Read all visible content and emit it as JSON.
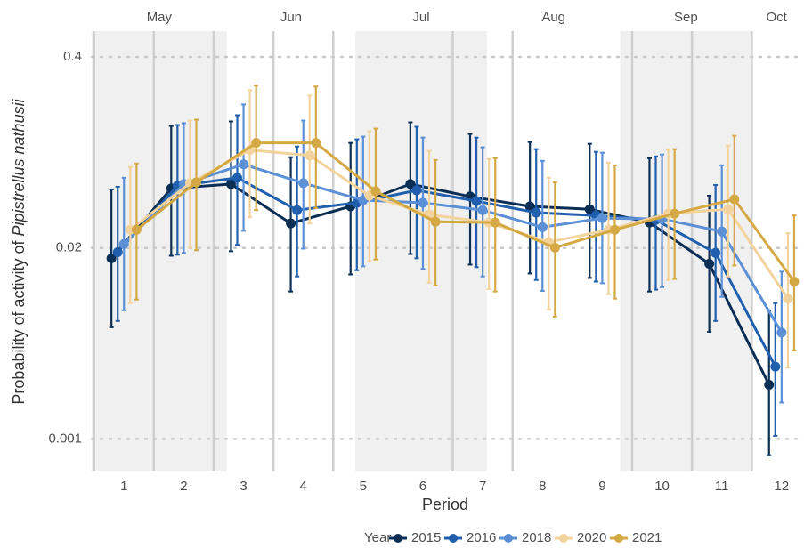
{
  "chart_data": {
    "type": "line",
    "x_label": "Period",
    "y_label": "Probability of activity of",
    "y_label_species": "Pipistrellus nathusii",
    "x": [
      1,
      2,
      3,
      4,
      5,
      6,
      7,
      8,
      9,
      10,
      11,
      12
    ],
    "xlim": [
      0.46,
      12.33
    ],
    "xticks": [
      1,
      2,
      3,
      4,
      5,
      6,
      7,
      8,
      9,
      10,
      11,
      12
    ],
    "ylim": [
      0.0006,
      0.6
    ],
    "yticks": [
      0.001,
      0.02,
      0.4
    ],
    "log_y": true,
    "grid": true,
    "legend": "bottom",
    "legend_title": "Year",
    "months": [
      {
        "label": "May",
        "start": 0.46,
        "end": 2.72,
        "shaded": true
      },
      {
        "label": "Jun",
        "start": 2.72,
        "end": 4.87,
        "shaded": false
      },
      {
        "label": "Jul",
        "start": 4.87,
        "end": 7.07,
        "shaded": true
      },
      {
        "label": "Aug",
        "start": 7.07,
        "end": 9.3,
        "shaded": false
      },
      {
        "label": "Sep",
        "start": 9.3,
        "end": 11.5,
        "shaded": true
      },
      {
        "label": "Oct",
        "start": 11.5,
        "end": 12.33,
        "shaded": false
      }
    ],
    "vlines": [
      0.5,
      1.5,
      2.5,
      3.5,
      4.5,
      6.5,
      7.5,
      9.5,
      10.5,
      11.5
    ],
    "series": [
      {
        "name": "2015",
        "color": "#0b2e55",
        "values": [
          0.017,
          0.0508,
          0.0545,
          0.0294,
          0.0384,
          0.0545,
          0.0448,
          0.0384,
          0.0367,
          0.0298,
          0.0156,
          0.00234
        ],
        "lower": [
          0.00576,
          0.0177,
          0.019,
          0.0101,
          0.0132,
          0.0182,
          0.0154,
          0.0134,
          0.0125,
          0.0101,
          0.00537,
          0.000774
        ],
        "upper": [
          0.0501,
          0.1356,
          0.1455,
          0.083,
          0.1039,
          0.1435,
          0.1196,
          0.1054,
          0.1024,
          0.0818,
          0.0454,
          0.00752
        ]
      },
      {
        "name": "2016",
        "color": "#1f5fad",
        "values": [
          0.0187,
          0.053,
          0.0601,
          0.0362,
          0.0406,
          0.0494,
          0.0417,
          0.0348,
          0.0333,
          0.0311,
          0.0185,
          0.00311
        ],
        "lower": [
          0.00636,
          0.018,
          0.021,
          0.0128,
          0.0141,
          0.017,
          0.0148,
          0.0121,
          0.0118,
          0.0104,
          0.00636,
          0.00105
        ],
        "upper": [
          0.0522,
          0.1376,
          0.1605,
          0.0982,
          0.1099,
          0.1338,
          0.113,
          0.0942,
          0.0903,
          0.0841,
          0.0537,
          0.00842
        ]
      },
      {
        "name": "2018",
        "color": "#5b8fd6",
        "values": [
          0.0213,
          0.0545,
          0.0742,
          0.0553,
          0.0423,
          0.0406,
          0.0362,
          0.0277,
          0.0319,
          0.0315,
          0.0259,
          0.0053
        ],
        "lower": [
          0.00752,
          0.0185,
          0.0262,
          0.0198,
          0.015,
          0.0144,
          0.0128,
          0.0102,
          0.0115,
          0.0108,
          0.00928,
          0.00177
        ],
        "upper": [
          0.0601,
          0.1415,
          0.1901,
          0.1476,
          0.1147,
          0.113,
          0.0969,
          0.0784,
          0.0891,
          0.0866,
          0.0731,
          0.0138
        ]
      },
      {
        "name": "2020",
        "color": "#f3d39c",
        "values": [
          0.0266,
          0.0553,
          0.0929,
          0.0854,
          0.0454,
          0.0338,
          0.0298,
          0.0219,
          0.0266,
          0.0343,
          0.0367,
          0.00903
        ],
        "lower": [
          0.00842,
          0.0201,
          0.0324,
          0.0294,
          0.0163,
          0.0116,
          0.0105,
          0.00763,
          0.00969,
          0.0121,
          0.0128,
          0.00306
        ],
        "upper": [
          0.0711,
          0.1476,
          0.2378,
          0.2186,
          0.1247,
          0.0916,
          0.0807,
          0.0601,
          0.0762,
          0.0929,
          0.0996,
          0.0252
        ]
      },
      {
        "name": "2021",
        "color": "#d4a843",
        "values": [
          0.0266,
          0.056,
          0.1039,
          0.1039,
          0.0487,
          0.0302,
          0.0298,
          0.0201,
          0.0266,
          0.0343,
          0.0429,
          0.0118
        ],
        "lower": [
          0.0089,
          0.0193,
          0.0362,
          0.0373,
          0.0167,
          0.0111,
          0.0101,
          0.00682,
          0.00903,
          0.0123,
          0.0152,
          0.004
        ],
        "upper": [
          0.0752,
          0.1496,
          0.2551,
          0.2517,
          0.1301,
          0.0795,
          0.0818,
          0.056,
          0.0731,
          0.0942,
          0.1162,
          0.0333
        ]
      }
    ]
  }
}
